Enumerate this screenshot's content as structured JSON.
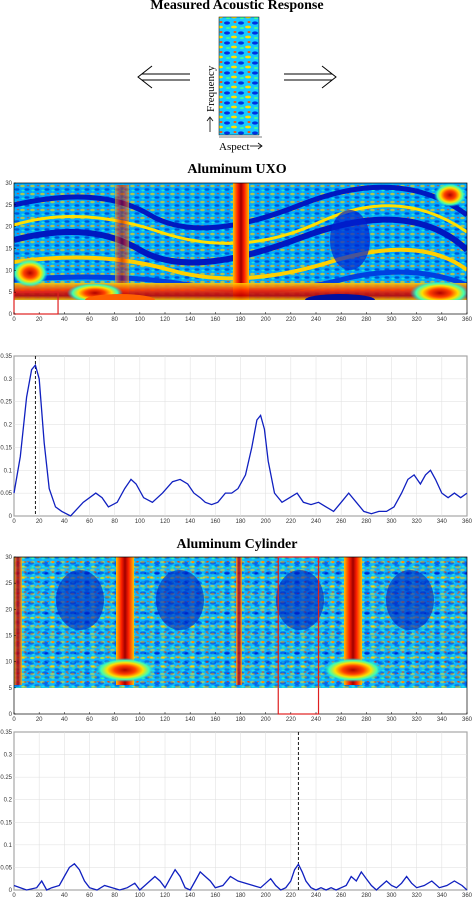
{
  "header": {
    "title": "Measured Acoustic Response",
    "frequency_label": "Frequency",
    "aspect_label": "Aspect"
  },
  "panels": {
    "uxo_title": "Aluminum UXO",
    "cylinder_title": "Aluminum Cylinder"
  },
  "chart_data": [
    {
      "type": "heatmap",
      "title": "Aluminum UXO",
      "x_ticks": [
        0,
        20,
        40,
        60,
        80,
        100,
        120,
        140,
        160,
        180,
        200,
        220,
        240,
        260,
        280,
        300,
        320,
        340,
        360
      ],
      "y_ticks": [
        0,
        5,
        10,
        15,
        20,
        25,
        30
      ],
      "xlim": [
        0,
        360
      ],
      "ylim": [
        0,
        30
      ],
      "colormap": "jet",
      "highlight_box": {
        "x0": 0,
        "x1": 35,
        "y0": 0,
        "y1": 5,
        "color": "#e02020"
      }
    },
    {
      "type": "line",
      "x_ticks": [
        0,
        20,
        40,
        60,
        80,
        100,
        120,
        140,
        160,
        180,
        200,
        220,
        240,
        260,
        280,
        300,
        320,
        340,
        360
      ],
      "y_ticks": [
        0,
        0.05,
        0.1,
        0.15,
        0.2,
        0.25,
        0.3,
        0.35
      ],
      "xlim": [
        0,
        360
      ],
      "ylim": [
        0,
        0.35
      ],
      "grid": true,
      "series_color": "#1020c0",
      "marker_x": 17,
      "x": [
        0,
        5,
        10,
        14,
        17,
        20,
        24,
        28,
        33,
        38,
        45,
        55,
        65,
        70,
        75,
        82,
        88,
        93,
        97,
        103,
        110,
        118,
        126,
        132,
        138,
        143,
        148,
        152,
        157,
        162,
        168,
        173,
        178,
        184,
        189,
        193,
        196,
        199,
        202,
        207,
        213,
        219,
        225,
        230,
        236,
        242,
        248,
        254,
        260,
        266,
        272,
        278,
        284,
        290,
        296,
        302,
        308,
        313,
        318,
        323,
        327,
        331,
        335,
        340,
        345,
        350,
        355,
        360
      ],
      "y": [
        0.05,
        0.13,
        0.26,
        0.32,
        0.33,
        0.3,
        0.16,
        0.06,
        0.02,
        0.01,
        0.0,
        0.03,
        0.05,
        0.04,
        0.02,
        0.03,
        0.06,
        0.08,
        0.07,
        0.04,
        0.03,
        0.05,
        0.075,
        0.08,
        0.07,
        0.05,
        0.04,
        0.03,
        0.025,
        0.03,
        0.05,
        0.05,
        0.06,
        0.09,
        0.15,
        0.21,
        0.22,
        0.19,
        0.12,
        0.05,
        0.03,
        0.04,
        0.05,
        0.03,
        0.025,
        0.03,
        0.02,
        0.01,
        0.03,
        0.05,
        0.03,
        0.01,
        0.005,
        0.01,
        0.01,
        0.02,
        0.05,
        0.08,
        0.09,
        0.07,
        0.09,
        0.1,
        0.08,
        0.05,
        0.04,
        0.05,
        0.04,
        0.05
      ]
    },
    {
      "type": "heatmap",
      "title": "Aluminum Cylinder",
      "x_ticks": [
        0,
        20,
        40,
        60,
        80,
        100,
        120,
        140,
        160,
        180,
        200,
        220,
        240,
        260,
        280,
        300,
        320,
        340,
        360
      ],
      "y_ticks": [
        0,
        5,
        10,
        15,
        20,
        25,
        30
      ],
      "xlim": [
        0,
        360
      ],
      "ylim": [
        0,
        30
      ],
      "colormap": "jet",
      "highlight_box": {
        "x0": 210,
        "x1": 242,
        "y0": 0,
        "y1": 30,
        "color": "#e02020"
      }
    },
    {
      "type": "line",
      "x_ticks": [
        0,
        20,
        40,
        60,
        80,
        100,
        120,
        140,
        160,
        180,
        200,
        220,
        240,
        260,
        280,
        300,
        320,
        340,
        360
      ],
      "y_ticks": [
        0,
        0.05,
        0.1,
        0.15,
        0.2,
        0.25,
        0.3,
        0.35
      ],
      "xlim": [
        0,
        360
      ],
      "ylim": [
        0,
        0.35
      ],
      "grid": true,
      "series_color": "#1020c0",
      "marker_x": 226,
      "x": [
        0,
        10,
        18,
        22,
        26,
        30,
        36,
        40,
        44,
        48,
        52,
        56,
        60,
        66,
        72,
        78,
        84,
        90,
        96,
        100,
        104,
        108,
        112,
        116,
        120,
        124,
        128,
        132,
        136,
        140,
        144,
        148,
        152,
        156,
        160,
        166,
        172,
        178,
        184,
        190,
        196,
        200,
        204,
        208,
        212,
        216,
        220,
        223,
        226,
        229,
        232,
        236,
        240,
        244,
        248,
        252,
        256,
        260,
        264,
        268,
        272,
        276,
        280,
        284,
        288,
        292,
        296,
        300,
        304,
        308,
        312,
        316,
        320,
        326,
        332,
        338,
        344,
        350,
        356,
        360
      ],
      "y": [
        0.01,
        0.0,
        0.005,
        0.02,
        0.0,
        0.005,
        0.01,
        0.03,
        0.05,
        0.058,
        0.045,
        0.02,
        0.005,
        0.0,
        0.01,
        0.005,
        0.0,
        0.005,
        0.015,
        0.0,
        0.01,
        0.02,
        0.03,
        0.02,
        0.005,
        0.025,
        0.045,
        0.03,
        0.005,
        0.0,
        0.02,
        0.04,
        0.03,
        0.02,
        0.005,
        0.01,
        0.03,
        0.02,
        0.015,
        0.01,
        0.005,
        0.015,
        0.025,
        0.01,
        0.0,
        0.005,
        0.02,
        0.045,
        0.057,
        0.04,
        0.02,
        0.005,
        0.0,
        0.005,
        0.0,
        0.005,
        0.0,
        0.005,
        0.01,
        0.03,
        0.02,
        0.04,
        0.025,
        0.01,
        0.0,
        0.01,
        0.02,
        0.01,
        0.005,
        0.015,
        0.03,
        0.015,
        0.005,
        0.01,
        0.02,
        0.005,
        0.01,
        0.02,
        0.01,
        0.0
      ]
    }
  ],
  "colors": {
    "background": "#ffffff",
    "axis": "#000000",
    "grid": "#d9d9d9",
    "highlight": "#e02020"
  }
}
